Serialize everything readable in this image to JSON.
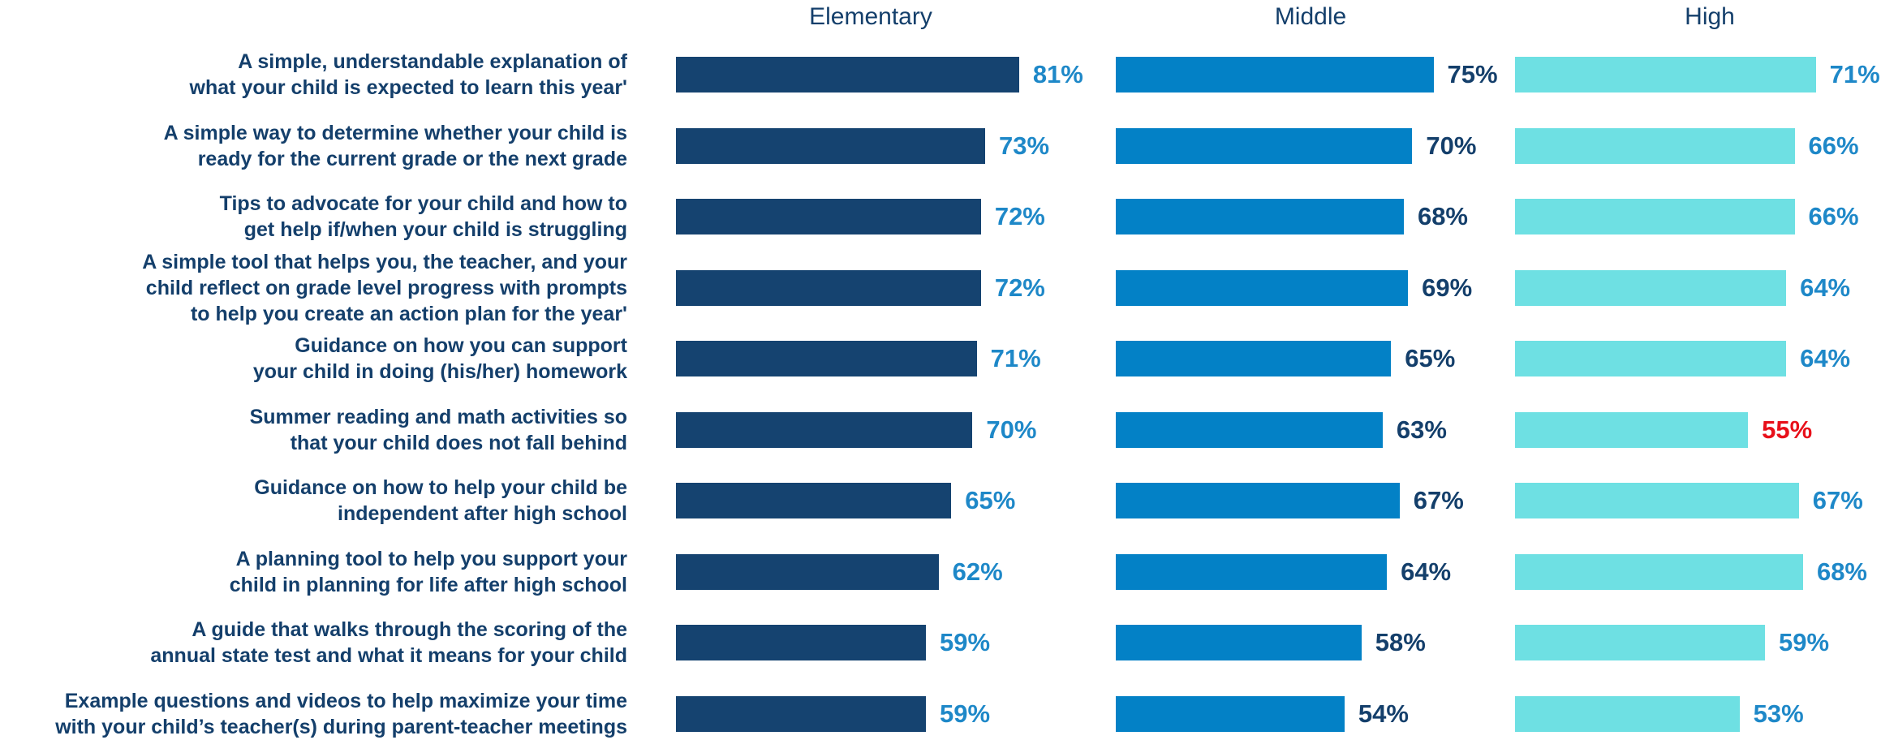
{
  "chart_data": {
    "type": "bar",
    "orientation": "horizontal",
    "xlim": [
      0,
      100
    ],
    "categories": [
      "A simple, understandable explanation of\nwhat your child is expected to learn this year'",
      "A simple way to determine whether your child is\nready for the current grade or the next grade",
      "Tips to advocate for your child and how to\nget help if/when your child is struggling",
      "A simple tool that helps you, the teacher, and your\nchild reflect on grade level progress with prompts\nto help you create an action plan for the year'",
      "Guidance on how you can support\nyour child in doing (his/her) homework",
      "Summer reading and math activities so\nthat your child does not fall behind",
      "Guidance on how to help your child be\nindependent after high school",
      "A planning tool to help you support your\nchild in planning for life after high school",
      "A guide that walks through the scoring of the\nannual state test and what it means for your child",
      "Example questions and videos to help maximize your time\nwith your child’s teacher(s) during parent-teacher meetings"
    ],
    "series": [
      {
        "name": "Elementary",
        "color": "#154370",
        "values": [
          81,
          73,
          72,
          72,
          71,
          70,
          65,
          62,
          59,
          59
        ],
        "value_labels": [
          "81%",
          "73%",
          "72%",
          "72%",
          "71%",
          "70%",
          "65%",
          "62%",
          "59%",
          "59%"
        ],
        "label_colors": [
          "#1e88c8",
          "#1e88c8",
          "#1e88c8",
          "#1e88c8",
          "#1e88c8",
          "#1e88c8",
          "#1e88c8",
          "#1e88c8",
          "#1e88c8",
          "#1e88c8"
        ]
      },
      {
        "name": "Middle",
        "color": "#0381c6",
        "values": [
          75,
          70,
          68,
          69,
          65,
          63,
          67,
          64,
          58,
          54
        ],
        "value_labels": [
          "75%",
          "70%",
          "68%",
          "69%",
          "65%",
          "63%",
          "67%",
          "64%",
          "58%",
          "54%"
        ],
        "label_colors": [
          "#143f6b",
          "#143f6b",
          "#143f6b",
          "#143f6b",
          "#143f6b",
          "#143f6b",
          "#143f6b",
          "#143f6b",
          "#143f6b",
          "#143f6b"
        ]
      },
      {
        "name": "High",
        "color": "#6ee0e3",
        "values": [
          71,
          66,
          66,
          64,
          64,
          55,
          67,
          68,
          59,
          53
        ],
        "value_labels": [
          "71%",
          "66%",
          "66%",
          "64%",
          "64%",
          "55%",
          "67%",
          "68%",
          "59%",
          "53%"
        ],
        "label_colors": [
          "#1e88c8",
          "#1e88c8",
          "#1e88c8",
          "#1e88c8",
          "#1e88c8",
          "#e8101a",
          "#1e88c8",
          "#1e88c8",
          "#1e88c8",
          "#1e88c8"
        ]
      }
    ]
  }
}
